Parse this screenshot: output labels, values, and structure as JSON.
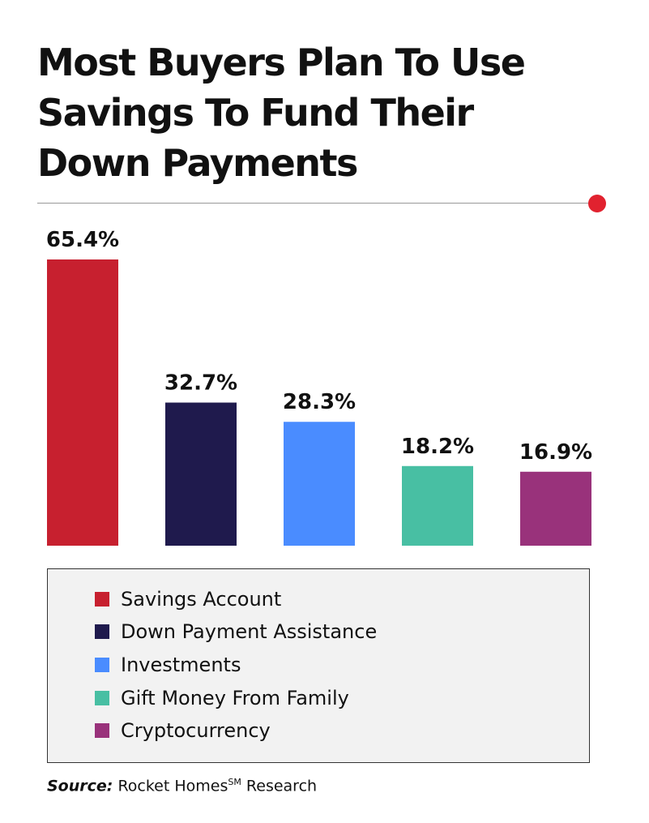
{
  "header": {
    "title_lines": [
      "Most Buyers Plan To Use",
      "Savings To Fund Their",
      "Down Payments"
    ]
  },
  "colors": {
    "accent_dot": "#e1222f"
  },
  "chart_data": {
    "type": "bar",
    "title": "Most Buyers Plan To Use Savings To Fund Their Down Payments",
    "categories": [
      "Savings Account",
      "Down Payment Assistance",
      "Investments",
      "Gift Money From Family",
      "Cryptocurrency"
    ],
    "values": [
      65.4,
      32.7,
      28.3,
      18.2,
      16.9
    ],
    "value_labels": [
      "65.4%",
      "32.7%",
      "28.3%",
      "18.2%",
      "16.9%"
    ],
    "colors": [
      "#c7202f",
      "#1f1a4d",
      "#4a8cff",
      "#48bfa3",
      "#99327b"
    ],
    "unit": "%",
    "ylim": [
      0,
      65.4
    ],
    "grid": false,
    "legend_placement": "bottom"
  },
  "legend": {
    "items": [
      {
        "label": "Savings Account",
        "color": "#c7202f"
      },
      {
        "label": "Down Payment Assistance",
        "color": "#1f1a4d"
      },
      {
        "label": "Investments",
        "color": "#4a8cff"
      },
      {
        "label": "Gift Money From Family",
        "color": "#48bfa3"
      },
      {
        "label": "Cryptocurrency",
        "color": "#99327b"
      }
    ]
  },
  "source": {
    "label": "Source:",
    "text": "Rocket Homes",
    "superscript": "SM",
    "suffix": "Research"
  }
}
